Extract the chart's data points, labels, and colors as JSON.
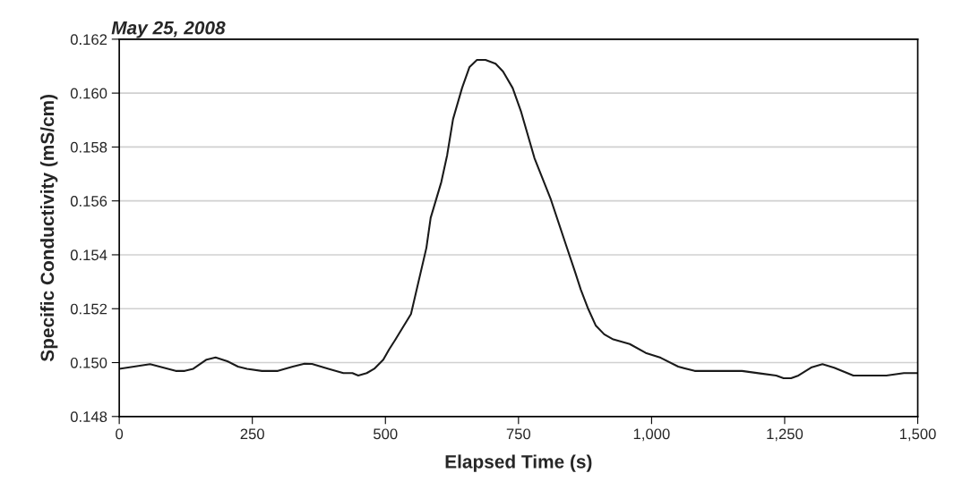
{
  "chart_data": {
    "type": "line",
    "title": "May 25, 2008",
    "xlabel": "Elapsed Time (s)",
    "ylabel": "Specific Conductivity (mS/cm)",
    "x": [
      0,
      58,
      106,
      123,
      139,
      164,
      181,
      203,
      223,
      240,
      268,
      298,
      326,
      348,
      362,
      393,
      421,
      438,
      449,
      465,
      479,
      496,
      507,
      518,
      548,
      577,
      585,
      605,
      616,
      627,
      644,
      658,
      672,
      688,
      707,
      721,
      739,
      755,
      780,
      811,
      839,
      856,
      867,
      881,
      895,
      911,
      928,
      959,
      989,
      1017,
      1050,
      1081,
      1140,
      1170,
      1207,
      1234,
      1248,
      1262,
      1276,
      1301,
      1321,
      1343,
      1379,
      1441,
      1474,
      1500
    ],
    "series": [
      {
        "color": "#1a1a1a",
        "values": [
          0.14977,
          0.14994,
          0.14969,
          0.14969,
          0.14977,
          0.15011,
          0.15019,
          0.15005,
          0.14985,
          0.14977,
          0.14969,
          0.14969,
          0.14985,
          0.14996,
          0.14995,
          0.14977,
          0.14961,
          0.14961,
          0.14952,
          0.14961,
          0.14977,
          0.15011,
          0.15049,
          0.15083,
          0.1518,
          0.15426,
          0.15537,
          0.1567,
          0.1577,
          0.15903,
          0.16019,
          0.16097,
          0.16123,
          0.16123,
          0.16109,
          0.1608,
          0.16019,
          0.1593,
          0.15759,
          0.15604,
          0.15438,
          0.15338,
          0.15271,
          0.15199,
          0.15138,
          0.15105,
          0.15086,
          0.15069,
          0.15036,
          0.15018,
          0.14985,
          0.14969,
          0.14969,
          0.14969,
          0.14959,
          0.14952,
          0.14942,
          0.14942,
          0.14952,
          0.14983,
          0.14994,
          0.14981,
          0.14952,
          0.14952,
          0.14961,
          0.14961
        ]
      }
    ],
    "xlim": [
      0,
      1500
    ],
    "xticks": [
      0,
      250,
      500,
      750,
      {
        "value": 1000,
        "label": "1,000"
      },
      {
        "value": 1250,
        "label": "1,250"
      },
      {
        "value": 1500,
        "label": "1,500"
      }
    ],
    "ylim": [
      0.148,
      0.162
    ],
    "yticks": [
      {
        "value": 0.148,
        "label": "0.148"
      },
      {
        "value": 0.15,
        "label": "0.150"
      },
      {
        "value": 0.152,
        "label": "0.152"
      },
      {
        "value": 0.154,
        "label": "0.154"
      },
      {
        "value": 0.156,
        "label": "0.156"
      },
      {
        "value": 0.158,
        "label": "0.158"
      },
      {
        "value": 0.16,
        "label": "0.160"
      },
      {
        "value": 0.162,
        "label": "0.162"
      }
    ],
    "grid": "y",
    "marker": "none",
    "line_style": "solid"
  }
}
